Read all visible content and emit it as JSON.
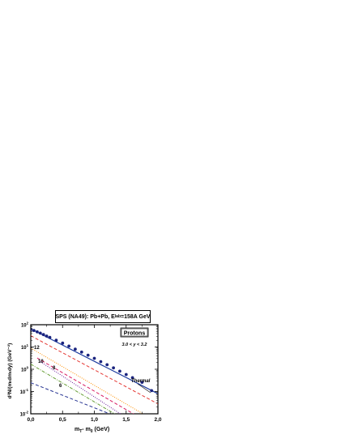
{
  "title": {
    "main": "SPS (NA49):  Pb+Pb,  E",
    "sub": "lab",
    "tail": "=158A GeV"
  },
  "chart_data": {
    "type": "line",
    "yscale": "log",
    "xlabel": {
      "main": "m",
      "sub1": "T",
      "mid": "- m",
      "sub2": "0",
      "tail": " (GeV)"
    },
    "ylabel": {
      "text": "d²N/(mₜdmₜdy)  (GeV⁻²)"
    },
    "xlim": [
      0,
      2.0
    ],
    "ylim_log10": [
      -2,
      2
    ],
    "x_ticks": [
      "0,0",
      "0,5",
      "1,0",
      "1,5",
      "2,0"
    ],
    "x_tick_values": [
      0,
      0.5,
      1.0,
      1.5,
      2.0
    ],
    "y_ticks": [
      {
        "base": "10",
        "exp": "2",
        "value": 100
      },
      {
        "base": "10",
        "exp": "1",
        "value": 10
      },
      {
        "base": "10",
        "exp": "0",
        "value": 1
      },
      {
        "base": "10",
        "exp": "-1",
        "value": 0.1
      },
      {
        "base": "10",
        "exp": "-2",
        "value": 0.01
      }
    ],
    "legend": {
      "label": "Protons",
      "placement": "top-right"
    },
    "annotations": {
      "rapidity": "3.0 < y < 3.2",
      "thermal": "Thermal",
      "curve_12": "12",
      "curve_10": "10",
      "curve_8": "8",
      "curve_6": "6"
    },
    "data_points": {
      "x": [
        0.0,
        0.05,
        0.1,
        0.15,
        0.2,
        0.25,
        0.3,
        0.4,
        0.5,
        0.6,
        0.7,
        0.8,
        0.9,
        1.0,
        1.1,
        1.2,
        1.3,
        1.4,
        1.5,
        1.6,
        1.75,
        1.9
      ],
      "y": [
        60,
        55,
        48,
        42,
        36,
        31,
        27,
        20,
        15,
        11,
        8.0,
        5.9,
        4.3,
        3.1,
        2.2,
        1.6,
        1.15,
        0.82,
        0.58,
        0.42,
        0.26,
        0.11
      ],
      "color": "#1a237e"
    },
    "series": [
      {
        "label_key": "thermal",
        "style": "solid",
        "color": "#1a3a9e",
        "x": [
          0,
          2.0
        ],
        "y": [
          65,
          0.08
        ]
      },
      {
        "style": "dashed",
        "color": "#e53935",
        "x": [
          0,
          2.0
        ],
        "y": [
          32,
          0.028
        ]
      },
      {
        "label_key": "curve_12",
        "style": "dotted",
        "color": "#ff8f00",
        "x": [
          0,
          2.0
        ],
        "y": [
          9.0,
          0.004
        ]
      },
      {
        "label_key": "curve_10",
        "style": "dashed",
        "color": "#d81b60",
        "x": [
          0.1,
          2.0
        ],
        "y": [
          3.2,
          0.0023
        ]
      },
      {
        "label_key": "curve_8",
        "style": "dotted",
        "color": "#6a1b9a",
        "x": [
          0.15,
          2.0
        ],
        "y": [
          2.2,
          0.0008
        ]
      },
      {
        "style": "dashdot",
        "color": "#689f38",
        "x": [
          0,
          1.55
        ],
        "y": [
          1.7,
          0.004
        ]
      },
      {
        "label_key": "curve_6",
        "style": "dashed",
        "color": "#283593",
        "x": [
          0,
          1.3
        ],
        "y": [
          0.25,
          0.0085
        ]
      }
    ]
  }
}
